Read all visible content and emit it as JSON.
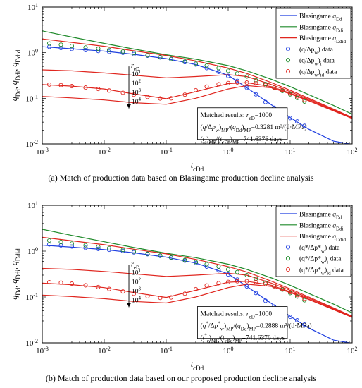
{
  "chart_data": [
    {
      "type": "line",
      "caption": "(a)  Match of production data based on Blasingame production decline analysis",
      "xlabel": "t",
      "xlabel_sub": "cDd",
      "ylabel_parts": [
        {
          "t": "q",
          "s": "Dd"
        },
        {
          "t": ", q",
          "s": "Ddi"
        },
        {
          "t": ", q",
          "s": "Ddid"
        }
      ],
      "xscale": "log",
      "yscale": "log",
      "xlim": [
        0.001,
        100
      ],
      "ylim": [
        0.01,
        10
      ],
      "xticks": [
        0.001,
        0.01,
        0.1,
        1,
        10,
        100
      ],
      "xtick_labels": [
        {
          "b": "10",
          "e": "-3"
        },
        {
          "b": "10",
          "e": "-2"
        },
        {
          "b": "10",
          "e": "-1"
        },
        {
          "b": "10",
          "e": "0"
        },
        {
          "b": "10",
          "e": "1"
        },
        {
          "b": "10",
          "e": "2"
        }
      ],
      "yticks": [
        0.01,
        0.1,
        1,
        10
      ],
      "ytick_labels": [
        {
          "b": "10",
          "e": "-2"
        },
        {
          "b": "10",
          "e": "-1"
        },
        {
          "b": "10",
          "e": "0"
        },
        {
          "b": "10",
          "e": "1"
        }
      ],
      "legend": [
        {
          "kind": "line",
          "color": "#1f3fe0",
          "t": "Blasingame ",
          "v": "q",
          "s": "Dd"
        },
        {
          "kind": "line",
          "color": "#1f8a2a",
          "t": "Blasingame ",
          "v": "q",
          "s": "Ddi"
        },
        {
          "kind": "line",
          "color": "#e0261f",
          "t": "Blasingame ",
          "v": "q",
          "s": "Ddid"
        },
        {
          "kind": "marker",
          "color": "#1f3fe0",
          "t": "(q/Δp",
          "s": "w",
          "t2": ") data"
        },
        {
          "kind": "marker",
          "color": "#1f8a2a",
          "t": "(q/Δp",
          "s": "w",
          "t2": ")",
          "s2": "i",
          "t3": " data"
        },
        {
          "kind": "marker",
          "color": "#e0261f",
          "t": "(q/Δp",
          "s": "w",
          "t2": ")",
          "s2": "id",
          "t3": " data"
        }
      ],
      "annotation": {
        "arrow_label": {
          "t": "r",
          "s": "eD"
        },
        "arrow_values": [
          {
            "b": "10",
            "e": "1"
          },
          {
            "b": "10",
            "e": "2"
          },
          {
            "b": "10",
            "e": "3"
          },
          {
            "b": "10",
            "e": "4"
          }
        ],
        "box_lines": [
          "Matched results: r_eD=1000",
          "(q/Δp_w)_MP/(q_Dd)_MP=0.3281 m³/(d·MPa)",
          "(t_c)_MP/(t_cDd)_MP=741.6376 days"
        ]
      },
      "series": [
        {
          "name": "Blasingame q_Dd",
          "color": "#1f3fe0",
          "x": [
            0.001,
            0.003,
            0.01,
            0.03,
            0.1,
            0.3,
            1,
            2,
            5,
            10,
            20,
            50,
            100
          ],
          "y": [
            1.35,
            1.22,
            1.08,
            0.92,
            0.74,
            0.55,
            0.32,
            0.17,
            0.072,
            0.038,
            0.021,
            0.0115,
            0.0098
          ]
        },
        {
          "name": "Blasingame q_Ddi",
          "color": "#1f8a2a",
          "x": [
            0.001,
            0.003,
            0.01,
            0.03,
            0.1,
            0.3,
            1,
            2,
            5,
            10,
            20,
            50,
            100
          ],
          "y": [
            3.0,
            2.2,
            1.6,
            1.2,
            0.9,
            0.72,
            0.52,
            0.4,
            0.26,
            0.18,
            0.12,
            0.07,
            0.045
          ]
        },
        {
          "name": "Blasingame q_Ddid rD=10",
          "color": "#e0261f",
          "x": [
            0.001,
            0.003,
            0.01,
            0.03,
            0.1,
            0.3,
            1,
            2,
            5,
            10,
            20,
            50,
            100
          ],
          "y": [
            2.0,
            1.68,
            1.38,
            1.1,
            0.87,
            0.66,
            0.46,
            0.35,
            0.22,
            0.15,
            0.1,
            0.058,
            0.038
          ]
        },
        {
          "name": "Blasingame q_Ddid rD=100",
          "color": "#e0261f",
          "x": [
            0.001,
            0.003,
            0.01,
            0.03,
            0.1,
            0.3,
            1,
            2,
            5,
            10,
            20,
            50,
            100
          ],
          "y": [
            0.42,
            0.4,
            0.36,
            0.32,
            0.28,
            0.3,
            0.33,
            0.3,
            0.2,
            0.14,
            0.095,
            0.056,
            0.037
          ]
        },
        {
          "name": "Blasingame q_Ddid rD=1000",
          "color": "#e0261f",
          "x": [
            0.001,
            0.003,
            0.01,
            0.03,
            0.1,
            0.3,
            1,
            2,
            5,
            10,
            20,
            50,
            100
          ],
          "y": [
            0.2,
            0.185,
            0.16,
            0.125,
            0.098,
            0.14,
            0.21,
            0.22,
            0.18,
            0.13,
            0.09,
            0.054,
            0.036
          ]
        },
        {
          "name": "Blasingame q_Ddid rD=10000",
          "color": "#e0261f",
          "x": [
            0.001,
            0.003,
            0.01,
            0.03,
            0.1,
            0.3,
            1,
            2,
            5,
            10,
            20,
            50,
            100
          ],
          "y": [
            0.11,
            0.102,
            0.092,
            0.08,
            0.074,
            0.1,
            0.16,
            0.19,
            0.17,
            0.125,
            0.088,
            0.053,
            0.036
          ]
        }
      ],
      "markers": [
        {
          "name": "(q/Δp_w) data",
          "color": "#1f3fe0",
          "x": [
            0.0013,
            0.002,
            0.003,
            0.005,
            0.008,
            0.012,
            0.02,
            0.03,
            0.05,
            0.08,
            0.12,
            0.2,
            0.3,
            0.45,
            0.7,
            1.0,
            1.4,
            2.0,
            2.8,
            4.0,
            5.5,
            7.5,
            10,
            13,
            17
          ],
          "y": [
            1.34,
            1.27,
            1.21,
            1.14,
            1.09,
            1.05,
            0.99,
            0.93,
            0.86,
            0.79,
            0.72,
            0.62,
            0.55,
            0.46,
            0.38,
            0.31,
            0.24,
            0.17,
            0.122,
            0.083,
            0.062,
            0.047,
            0.037,
            0.031,
            0.025
          ]
        },
        {
          "name": "(q/Δp_w)_i data",
          "color": "#1f8a2a",
          "x": [
            0.0013,
            0.002,
            0.003,
            0.005,
            0.008,
            0.012,
            0.02,
            0.03,
            0.05,
            0.08,
            0.12,
            0.2,
            0.3,
            0.45,
            0.7,
            1.0,
            1.4,
            2.0,
            2.8,
            4.0,
            5.5,
            7.5,
            10,
            13,
            17
          ],
          "y": [
            1.6,
            1.5,
            1.4,
            1.3,
            1.22,
            1.15,
            1.06,
            0.98,
            0.88,
            0.8,
            0.73,
            0.64,
            0.58,
            0.52,
            0.46,
            0.4,
            0.35,
            0.3,
            0.25,
            0.205,
            0.172,
            0.145,
            0.122,
            0.102,
            0.085
          ]
        },
        {
          "name": "(q/Δp_w)_id data",
          "color": "#e0261f",
          "x": [
            0.0013,
            0.002,
            0.003,
            0.005,
            0.008,
            0.012,
            0.02,
            0.03,
            0.05,
            0.08,
            0.12,
            0.2,
            0.3,
            0.45,
            0.7,
            1.0,
            1.4,
            2.0,
            2.8,
            4.0,
            5.5,
            7.5,
            10,
            13,
            17
          ],
          "y": [
            0.2,
            0.195,
            0.185,
            0.172,
            0.16,
            0.148,
            0.132,
            0.12,
            0.107,
            0.099,
            0.1,
            0.12,
            0.15,
            0.18,
            0.203,
            0.215,
            0.222,
            0.221,
            0.212,
            0.194,
            0.172,
            0.15,
            0.128,
            0.11,
            0.092
          ]
        }
      ]
    },
    {
      "type": "line",
      "caption": "(b)  Match of production data based on our proposed production decline analysis",
      "xlabel": "t",
      "xlabel_sub": "cDd",
      "ylabel_parts": [
        {
          "t": "q",
          "s": "Dd"
        },
        {
          "t": ", q",
          "s": "Ddi"
        },
        {
          "t": ", q",
          "s": "Ddid"
        }
      ],
      "xscale": "log",
      "yscale": "log",
      "xlim": [
        0.001,
        100
      ],
      "ylim": [
        0.01,
        10
      ],
      "xticks": [
        0.001,
        0.01,
        0.1,
        1,
        10,
        100
      ],
      "xtick_labels": [
        {
          "b": "10",
          "e": "-3"
        },
        {
          "b": "10",
          "e": "-2"
        },
        {
          "b": "10",
          "e": "-1"
        },
        {
          "b": "10",
          "e": "0"
        },
        {
          "b": "10",
          "e": "1"
        },
        {
          "b": "10",
          "e": "2"
        }
      ],
      "yticks": [
        0.01,
        0.1,
        1,
        10
      ],
      "ytick_labels": [
        {
          "b": "10",
          "e": "-2"
        },
        {
          "b": "10",
          "e": "-1"
        },
        {
          "b": "10",
          "e": "0"
        },
        {
          "b": "10",
          "e": "1"
        }
      ],
      "legend": [
        {
          "kind": "line",
          "color": "#1f3fe0",
          "t": "Blasingame ",
          "v": "q",
          "s": "Dd"
        },
        {
          "kind": "line",
          "color": "#1f8a2a",
          "t": "Blasingame ",
          "v": "q",
          "s": "Ddi"
        },
        {
          "kind": "line",
          "color": "#e0261f",
          "t": "Blasingame ",
          "v": "q",
          "s": "Ddid"
        },
        {
          "kind": "marker",
          "color": "#1f3fe0",
          "t": "(q*/Δp*",
          "s": "w",
          "t2": ") data"
        },
        {
          "kind": "marker",
          "color": "#1f8a2a",
          "t": "(q*/Δp*",
          "s": "w",
          "t2": ")",
          "s2": "i",
          "t3": " data"
        },
        {
          "kind": "marker",
          "color": "#e0261f",
          "t": "(q*/Δp*",
          "s": "w",
          "t2": ")",
          "s2": "id",
          "t3": " data"
        }
      ],
      "annotation": {
        "arrow_label": {
          "t": "r",
          "s": "eD"
        },
        "arrow_values": [
          {
            "b": "10",
            "e": "1"
          },
          {
            "b": "10",
            "e": "2"
          },
          {
            "b": "10",
            "e": "3"
          },
          {
            "b": "10",
            "e": "4"
          }
        ],
        "box_lines": [
          "Matched results: r_eD=1000",
          "(q*/Δp*_w)_MP/(q_Dd)_MP=0.2888 m³/(d·MPa)",
          "(t*_c)_MP/(t_cDd)_MP=741.6376 days"
        ]
      },
      "series": [
        {
          "name": "Blasingame q_Dd",
          "color": "#1f3fe0",
          "x": [
            0.001,
            0.003,
            0.01,
            0.03,
            0.1,
            0.3,
            1,
            2,
            5,
            10,
            20,
            50,
            100
          ],
          "y": [
            1.35,
            1.22,
            1.08,
            0.92,
            0.74,
            0.55,
            0.32,
            0.17,
            0.072,
            0.038,
            0.021,
            0.0115,
            0.0098
          ]
        },
        {
          "name": "Blasingame q_Ddi",
          "color": "#1f8a2a",
          "x": [
            0.001,
            0.003,
            0.01,
            0.03,
            0.1,
            0.3,
            1,
            2,
            5,
            10,
            20,
            50,
            100
          ],
          "y": [
            3.0,
            2.2,
            1.6,
            1.2,
            0.9,
            0.72,
            0.52,
            0.4,
            0.26,
            0.18,
            0.12,
            0.07,
            0.045
          ]
        },
        {
          "name": "Blasingame q_Ddid rD=10",
          "color": "#e0261f",
          "x": [
            0.001,
            0.003,
            0.01,
            0.03,
            0.1,
            0.3,
            1,
            2,
            5,
            10,
            20,
            50,
            100
          ],
          "y": [
            2.0,
            1.68,
            1.38,
            1.1,
            0.87,
            0.66,
            0.46,
            0.35,
            0.22,
            0.15,
            0.1,
            0.058,
            0.038
          ]
        },
        {
          "name": "Blasingame q_Ddid rD=100",
          "color": "#e0261f",
          "x": [
            0.001,
            0.003,
            0.01,
            0.03,
            0.1,
            0.3,
            1,
            2,
            5,
            10,
            20,
            50,
            100
          ],
          "y": [
            0.42,
            0.4,
            0.36,
            0.32,
            0.28,
            0.3,
            0.33,
            0.3,
            0.2,
            0.14,
            0.095,
            0.056,
            0.037
          ]
        },
        {
          "name": "Blasingame q_Ddid rD=1000",
          "color": "#e0261f",
          "x": [
            0.001,
            0.003,
            0.01,
            0.03,
            0.1,
            0.3,
            1,
            2,
            5,
            10,
            20,
            50,
            100
          ],
          "y": [
            0.2,
            0.185,
            0.16,
            0.125,
            0.098,
            0.14,
            0.21,
            0.22,
            0.18,
            0.13,
            0.09,
            0.054,
            0.036
          ]
        },
        {
          "name": "Blasingame q_Ddid rD=10000",
          "color": "#e0261f",
          "x": [
            0.001,
            0.003,
            0.01,
            0.03,
            0.1,
            0.3,
            1,
            2,
            5,
            10,
            20,
            50,
            100
          ],
          "y": [
            0.11,
            0.102,
            0.092,
            0.08,
            0.074,
            0.1,
            0.16,
            0.19,
            0.17,
            0.125,
            0.088,
            0.053,
            0.036
          ]
        }
      ],
      "markers": [
        {
          "name": "(q*/Δp*_w) data",
          "color": "#1f3fe0",
          "x": [
            0.0013,
            0.002,
            0.003,
            0.005,
            0.008,
            0.012,
            0.02,
            0.03,
            0.05,
            0.08,
            0.12,
            0.2,
            0.3,
            0.45,
            0.7,
            1.0,
            1.4,
            2.0,
            2.8,
            4.0,
            5.5,
            7.5,
            10,
            13,
            17
          ],
          "y": [
            1.4,
            1.33,
            1.26,
            1.18,
            1.12,
            1.07,
            1.0,
            0.94,
            0.86,
            0.79,
            0.72,
            0.62,
            0.55,
            0.46,
            0.38,
            0.31,
            0.24,
            0.17,
            0.122,
            0.083,
            0.062,
            0.047,
            0.037,
            0.031,
            0.025
          ]
        },
        {
          "name": "(q*/Δp*_w)_i data",
          "color": "#1f8a2a",
          "x": [
            0.0013,
            0.002,
            0.003,
            0.005,
            0.008,
            0.012,
            0.02,
            0.03,
            0.05,
            0.08,
            0.12,
            0.2,
            0.3,
            0.45,
            0.7,
            1.0,
            1.4,
            2.0,
            2.8,
            4.0,
            5.5,
            7.5,
            10,
            13,
            17
          ],
          "y": [
            1.7,
            1.58,
            1.46,
            1.34,
            1.24,
            1.16,
            1.06,
            0.98,
            0.88,
            0.8,
            0.73,
            0.64,
            0.58,
            0.52,
            0.46,
            0.4,
            0.35,
            0.3,
            0.25,
            0.205,
            0.172,
            0.145,
            0.122,
            0.102,
            0.085
          ]
        },
        {
          "name": "(q*/Δp*_w)_id data",
          "color": "#e0261f",
          "x": [
            0.0013,
            0.002,
            0.003,
            0.005,
            0.008,
            0.012,
            0.02,
            0.03,
            0.05,
            0.08,
            0.12,
            0.2,
            0.3,
            0.45,
            0.7,
            1.0,
            1.4,
            2.0,
            2.8,
            4.0,
            5.5,
            7.5,
            10,
            13,
            17
          ],
          "y": [
            0.21,
            0.205,
            0.195,
            0.18,
            0.165,
            0.15,
            0.132,
            0.118,
            0.104,
            0.096,
            0.098,
            0.118,
            0.148,
            0.178,
            0.2,
            0.213,
            0.22,
            0.22,
            0.212,
            0.194,
            0.172,
            0.15,
            0.128,
            0.11,
            0.092
          ]
        }
      ]
    }
  ]
}
